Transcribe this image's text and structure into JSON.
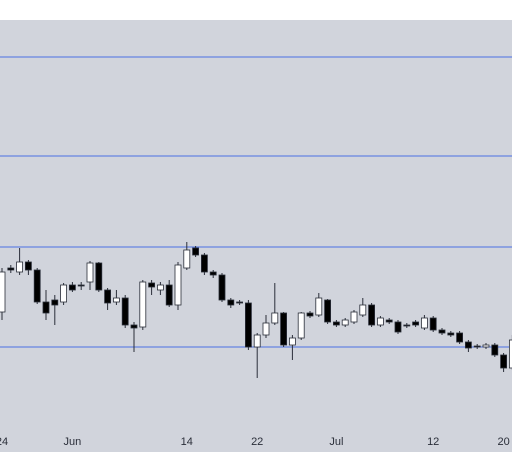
{
  "chart_data": {
    "type": "candlestick",
    "categories": [
      "24",
      null,
      null,
      null,
      null,
      null,
      null,
      null,
      "Jun",
      null,
      null,
      null,
      null,
      null,
      null,
      null,
      null,
      null,
      null,
      null,
      null,
      "14",
      null,
      null,
      null,
      null,
      null,
      null,
      null,
      "22",
      null,
      null,
      null,
      null,
      null,
      null,
      null,
      null,
      "Jul",
      null,
      null,
      null,
      null,
      null,
      null,
      null,
      null,
      null,
      null,
      "12",
      null,
      null,
      null,
      null,
      null,
      null,
      null,
      "20",
      null
    ],
    "open": [
      118,
      162,
      158,
      168,
      160,
      128,
      130,
      128,
      145,
      145,
      148,
      167,
      140,
      128,
      132,
      105,
      103,
      147,
      140,
      145,
      125,
      162,
      182,
      175,
      158,
      155,
      130,
      128,
      127,
      83,
      95,
      107,
      117,
      85,
      92,
      117,
      115,
      130,
      108,
      105,
      108,
      115,
      125,
      105,
      110,
      108,
      105,
      108,
      102,
      112,
      100,
      97,
      97,
      88,
      84,
      83,
      85,
      75,
      62
    ],
    "high": [
      162,
      165,
      182,
      170,
      162,
      140,
      135,
      147,
      148,
      148,
      169,
      168,
      142,
      140,
      135,
      108,
      150,
      150,
      148,
      150,
      168,
      188,
      184,
      177,
      160,
      157,
      132,
      130,
      130,
      97,
      115,
      147,
      118,
      95,
      118,
      119,
      137,
      131,
      110,
      112,
      120,
      132,
      127,
      114,
      112,
      110,
      107,
      110,
      115,
      114,
      102,
      99,
      99,
      90,
      86,
      87,
      87,
      77,
      95
    ],
    "low": [
      110,
      157,
      155,
      155,
      126,
      110,
      105,
      125,
      138,
      140,
      140,
      138,
      120,
      125,
      102,
      78,
      100,
      135,
      135,
      123,
      120,
      160,
      173,
      155,
      152,
      128,
      122,
      125,
      80,
      52,
      92,
      105,
      83,
      70,
      90,
      112,
      113,
      106,
      103,
      103,
      106,
      113,
      103,
      103,
      106,
      96,
      102,
      103,
      100,
      98,
      95,
      93,
      86,
      78,
      81,
      81,
      73,
      58,
      60
    ],
    "close": [
      158,
      160,
      168,
      160,
      128,
      117,
      125,
      145,
      140,
      144,
      167,
      140,
      127,
      132,
      105,
      102,
      148,
      143,
      145,
      125,
      165,
      180,
      175,
      158,
      155,
      130,
      125,
      127,
      83,
      95,
      107,
      117,
      85,
      92,
      117,
      114,
      132,
      108,
      105,
      110,
      118,
      125,
      105,
      112,
      108,
      98,
      104,
      105,
      112,
      100,
      97,
      95,
      88,
      82,
      83,
      85,
      75,
      62,
      90
    ],
    "up_color": "#ffffff",
    "down_color": "#000000",
    "wick_color": "#2a2e39",
    "levels": [
      373,
      274,
      183,
      83
    ],
    "level_color": "#4a6fe3",
    "ylim": [
      0,
      410
    ]
  }
}
